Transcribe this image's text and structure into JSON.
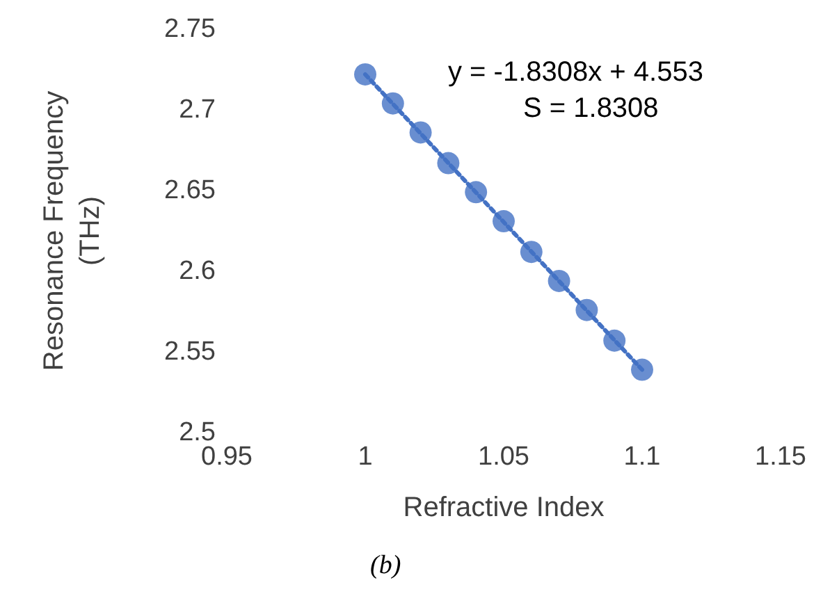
{
  "chart_data": {
    "type": "scatter",
    "xlabel": "Refractive Index",
    "ylabel": "Resonance Frequency (THz)",
    "x": [
      1.0,
      1.01,
      1.02,
      1.03,
      1.04,
      1.05,
      1.06,
      1.07,
      1.08,
      1.09,
      1.1
    ],
    "series": [
      {
        "color": "#4472c4",
        "marker": "circle",
        "values": [
          2.722,
          2.704,
          2.686,
          2.667,
          2.649,
          2.631,
          2.612,
          2.594,
          2.576,
          2.557,
          2.539
        ]
      },
      {
        "type": "line",
        "color": "#4472c4",
        "line_style": "dotted",
        "marker": "none",
        "x": [
          1.0,
          1.1
        ],
        "values": [
          2.722,
          2.539
        ]
      }
    ],
    "xlim": [
      0.95,
      1.15
    ],
    "xticks": [
      0.95,
      1,
      1.05,
      1.1,
      1.15
    ],
    "ylim": [
      2.5,
      2.75
    ],
    "yticks": [
      2.5,
      2.55,
      2.6,
      2.65,
      2.7,
      2.75
    ],
    "grid": false,
    "annotations": [
      "y = -1.8308x + 4.553",
      "S = 1.8308",
      "(b)"
    ]
  }
}
